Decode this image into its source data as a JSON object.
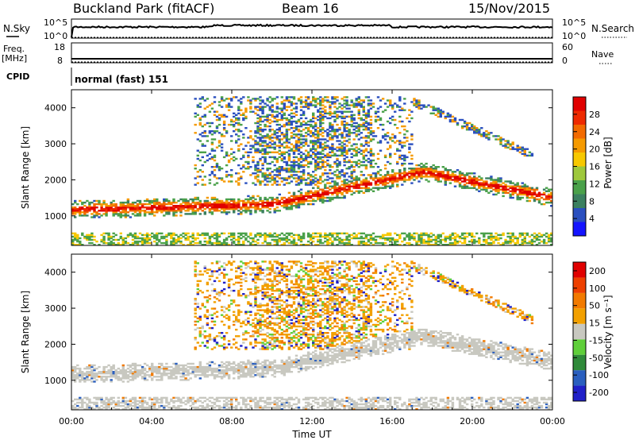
{
  "header": {
    "station": "Buckland Park (fitACF)",
    "beam": "Beam 16",
    "date": "15/Nov/2015"
  },
  "colors": {
    "power_scale": [
      "#1414ff",
      "#2a4fbf",
      "#3b8060",
      "#4aa14a",
      "#9ec83c",
      "#f7c800",
      "#f59a00",
      "#f26a00",
      "#ee2a00",
      "#e00000"
    ],
    "velocity_scale": [
      "#2020c8",
      "#2a5fbf",
      "#2f8a3a",
      "#5fcf3a",
      "#c8c8c0",
      "#f2a000",
      "#f27a00",
      "#ee4000",
      "#e00000"
    ],
    "ground_scatter": "#c8c8c0"
  },
  "chart_data": [
    {
      "type": "line",
      "panel": "noise",
      "left_label": "N.Sky",
      "right_label": "N.Search",
      "left_ticks": [
        "10^5",
        "10^0"
      ],
      "right_ticks": [
        "10^5",
        "10^0"
      ],
      "xlim": [
        0,
        24
      ]
    },
    {
      "type": "line",
      "panel": "frequency",
      "left_label": "Freq.",
      "left_unit": "[MHz]",
      "right_label": "Nave",
      "left_ticks": [
        18,
        8
      ],
      "right_ticks": [
        60,
        0
      ],
      "xlim": [
        0,
        24
      ]
    },
    {
      "type": "table",
      "panel": "cpid",
      "label": "CPID",
      "value": "normal (fast) 151"
    },
    {
      "type": "heatmap",
      "panel": "power",
      "ylabel": "Slant Range [km]",
      "yticks": [
        1000,
        2000,
        3000,
        4000
      ],
      "ylim": [
        180,
        4500
      ],
      "xlim": [
        0,
        24
      ],
      "colorbar_label": "Power [dB]",
      "colorbar_ticks": [
        "4",
        "8",
        "12",
        "16",
        "20",
        "24",
        "28"
      ],
      "colorbar_range": [
        0,
        32
      ]
    },
    {
      "type": "heatmap",
      "panel": "velocity",
      "ylabel": "Slant Range [km]",
      "yticks": [
        1000,
        2000,
        3000,
        4000
      ],
      "ylim": [
        180,
        4500
      ],
      "xlim": [
        0,
        24
      ],
      "colorbar_label": "Velocity [m s⁻¹]",
      "colorbar_ticks": [
        "200",
        "100",
        "50",
        "15",
        "-15",
        "-50",
        "-100",
        "-200"
      ]
    },
    {
      "type": "axis",
      "xlabel": "Time UT",
      "xticks": [
        "00:00",
        "04:00",
        "08:00",
        "12:00",
        "16:00",
        "20:00",
        "00:00"
      ],
      "xtick_values": [
        0,
        4,
        8,
        12,
        16,
        20,
        24
      ]
    }
  ]
}
